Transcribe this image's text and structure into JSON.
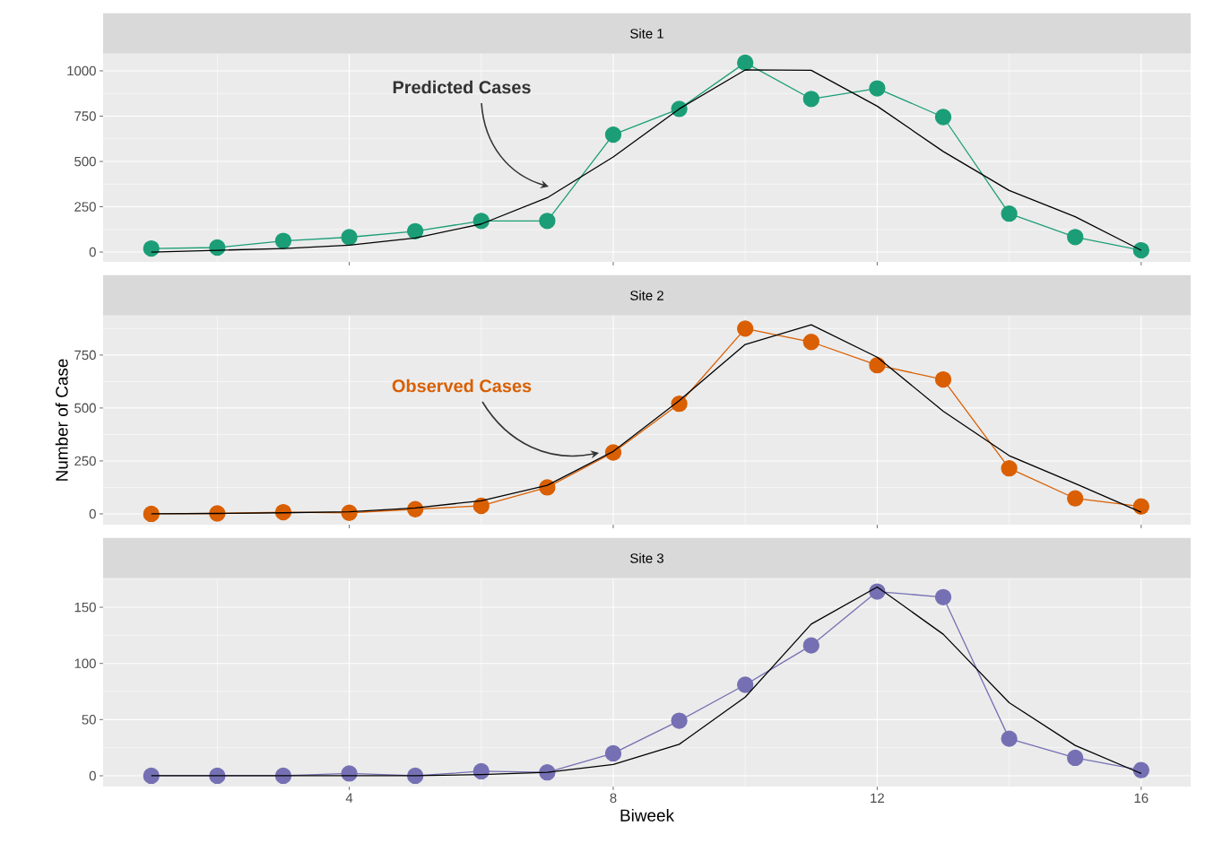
{
  "chart_data": [
    {
      "type": "line",
      "title": "Site 1",
      "x": [
        1,
        2,
        3,
        4,
        5,
        6,
        7,
        8,
        9,
        10,
        11,
        12,
        13,
        14,
        15,
        16
      ],
      "xlim": [
        0.27,
        16.75
      ],
      "xticks": [
        4,
        8,
        12,
        16
      ],
      "ylim": [
        -54,
        1094
      ],
      "yticks": [
        0,
        250,
        500,
        750,
        1000
      ],
      "grid": true,
      "tick_labels": "y",
      "series": [
        {
          "color": "#1b9e77",
          "marker": "circle",
          "values": [
            20,
            25,
            62,
            82,
            115,
            172,
            172,
            648,
            790,
            1045,
            845,
            903,
            745,
            212,
            83,
            10
          ]
        },
        {
          "color": "#000000",
          "marker": "none",
          "values": [
            0,
            10,
            20,
            38,
            78,
            155,
            300,
            525,
            790,
            1005,
            1003,
            805,
            555,
            340,
            195,
            10
          ]
        }
      ],
      "annotations": [
        "Predicted Cases"
      ]
    },
    {
      "type": "line",
      "title": "Site 2",
      "ylabel": "Number of Case",
      "x": [
        1,
        2,
        3,
        4,
        5,
        6,
        7,
        8,
        9,
        10,
        11,
        12,
        13,
        14,
        15,
        16
      ],
      "xlim": [
        0.27,
        16.75
      ],
      "xticks": [
        4,
        8,
        12,
        16
      ],
      "ylim": [
        -51,
        936
      ],
      "yticks": [
        0,
        250,
        500,
        750
      ],
      "grid": true,
      "tick_labels": "y",
      "series": [
        {
          "color": "#d95f02",
          "marker": "circle",
          "values": [
            0,
            2,
            8,
            5,
            22,
            38,
            125,
            290,
            520,
            875,
            812,
            702,
            635,
            215,
            73,
            35
          ]
        },
        {
          "color": "#000000",
          "marker": "none",
          "values": [
            0,
            2,
            5,
            10,
            28,
            62,
            135,
            295,
            535,
            800,
            893,
            740,
            485,
            275,
            143,
            8
          ]
        }
      ],
      "annotations": [
        "Observed Cases"
      ]
    },
    {
      "type": "line",
      "title": "Site 3",
      "xlabel": "Biweek",
      "x": [
        1,
        2,
        3,
        4,
        5,
        6,
        7,
        8,
        9,
        10,
        11,
        12,
        13,
        14,
        15,
        16
      ],
      "xlim": [
        0.27,
        16.75
      ],
      "xticks": [
        4,
        8,
        12,
        16
      ],
      "ylim": [
        -9.6,
        175.6
      ],
      "yticks": [
        0,
        50,
        100,
        150
      ],
      "grid": true,
      "series": [
        {
          "color": "#7570b3",
          "marker": "circle",
          "values": [
            0,
            0,
            0,
            2,
            0,
            4,
            3,
            20,
            49,
            81,
            116,
            164,
            159,
            33,
            16,
            5
          ]
        },
        {
          "color": "#000000",
          "marker": "none",
          "values": [
            0,
            0,
            0,
            0,
            0,
            1,
            3,
            10,
            28,
            70,
            135,
            168,
            126,
            65,
            27,
            2
          ]
        }
      ]
    }
  ]
}
